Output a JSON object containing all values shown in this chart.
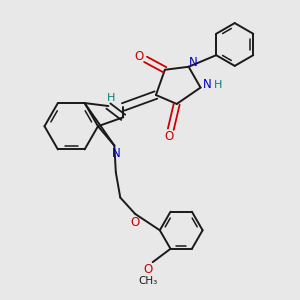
{
  "background_color": "#e8e8e8",
  "bond_color": "#1a1a1a",
  "nitrogen_color": "#0000cc",
  "oxygen_color": "#cc0000",
  "hydrogen_color": "#008080",
  "figsize": [
    3.0,
    3.0
  ],
  "dpi": 100,
  "xlim": [
    0,
    10
  ],
  "ylim": [
    0,
    10
  ]
}
